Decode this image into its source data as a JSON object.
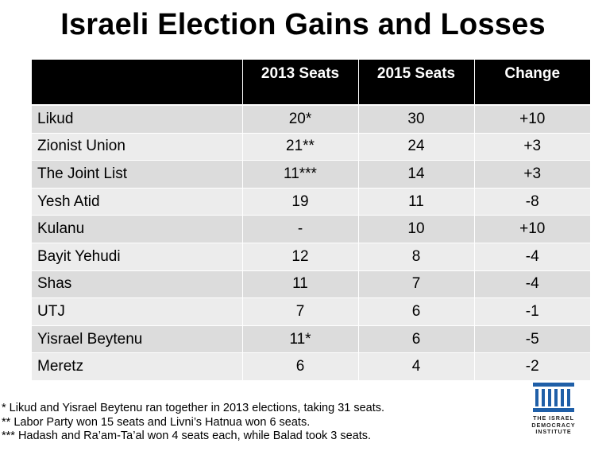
{
  "title": "Israeli Election Gains and Losses",
  "table": {
    "headers": [
      "",
      "2013 Seats",
      "2015 Seats",
      "Change"
    ],
    "rows": [
      [
        "Likud",
        "20*",
        "30",
        "+10"
      ],
      [
        "Zionist Union",
        "21**",
        "24",
        "+3"
      ],
      [
        "The Joint List",
        "11***",
        "14",
        "+3"
      ],
      [
        "Yesh Atid",
        "19",
        "11",
        "-8"
      ],
      [
        "Kulanu",
        "-",
        "10",
        "+10"
      ],
      [
        "Bayit Yehudi",
        "12",
        "8",
        "-4"
      ],
      [
        "Shas",
        "11",
        "7",
        "-4"
      ],
      [
        "UTJ",
        "7",
        "6",
        "-1"
      ],
      [
        "Yisrael Beytenu",
        "11*",
        "6",
        "-5"
      ],
      [
        "Meretz",
        "6",
        "4",
        "-2"
      ]
    ]
  },
  "footnotes": [
    "* Likud and Yisrael Beytenu ran together in 2013 elections, taking 31 seats.",
    "** Labor Party won 15 seats and Livni’s Hatnua won 6 seats.",
    "*** Hadash and Ra’am-Ta’al won 4 seats each, while Balad took 3 seats."
  ],
  "logo": {
    "icon": "pillared-building-icon",
    "lines": [
      "THE ISRAEL",
      "DEMOCRACY",
      "INSTITUTE"
    ],
    "color": "#1f5fa8"
  },
  "colors": {
    "header_bg": "#000000",
    "row_dark": "#dcdcdc",
    "row_light": "#ececec"
  }
}
